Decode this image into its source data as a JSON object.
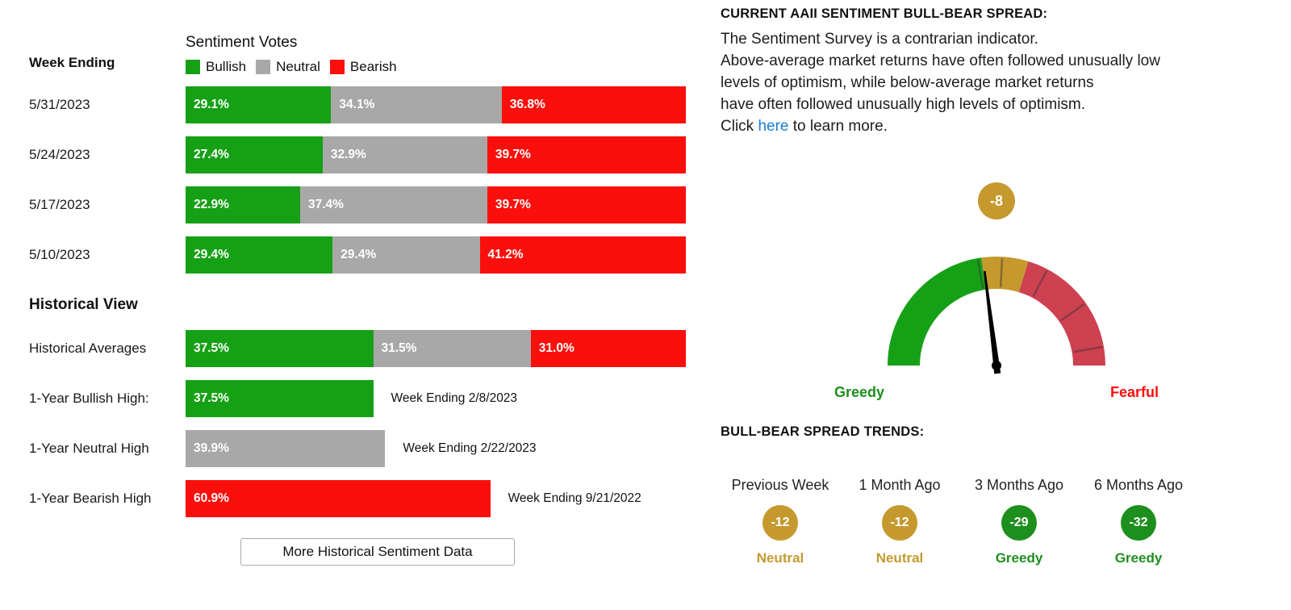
{
  "colors": {
    "bullish": "#16a016",
    "neutral": "#a8a8a8",
    "bearish": "#fb0f0c",
    "gold": "#c5992e",
    "gauge_red": "#ce4150",
    "trend_green": "#1d8f1d",
    "link": "#1c7fd6"
  },
  "left": {
    "week_ending_label": "Week Ending",
    "chart_title": "Sentiment Votes",
    "legend": [
      {
        "label": "Bullish"
      },
      {
        "label": "Neutral"
      },
      {
        "label": "Bearish"
      }
    ],
    "weeks": [
      {
        "date": "5/31/2023",
        "bullish": 29.1,
        "neutral": 34.1,
        "bearish": 36.8,
        "bullish_label": "29.1%",
        "neutral_label": "34.1%",
        "bearish_label": "36.8%"
      },
      {
        "date": "5/24/2023",
        "bullish": 27.4,
        "neutral": 32.9,
        "bearish": 39.7,
        "bullish_label": "27.4%",
        "neutral_label": "32.9%",
        "bearish_label": "39.7%"
      },
      {
        "date": "5/17/2023",
        "bullish": 22.9,
        "neutral": 37.4,
        "bearish": 39.7,
        "bullish_label": "22.9%",
        "neutral_label": "37.4%",
        "bearish_label": "39.7%"
      },
      {
        "date": "5/10/2023",
        "bullish": 29.4,
        "neutral": 29.4,
        "bearish": 41.2,
        "bullish_label": "29.4%",
        "neutral_label": "29.4%",
        "bearish_label": "41.2%"
      }
    ],
    "historical_heading": "Historical View",
    "historical_averages": {
      "label": "Historical Averages",
      "bullish": 37.5,
      "neutral": 31.5,
      "bearish": 31.0,
      "bullish_label": "37.5%",
      "neutral_label": "31.5%",
      "bearish_label": "31.0%"
    },
    "historical_highs": [
      {
        "label": "1-Year Bullish High:",
        "series": "bullish",
        "value": 37.5,
        "value_label": "37.5%",
        "note": "Week Ending 2/8/2023"
      },
      {
        "label": "1-Year Neutral High",
        "series": "neutral",
        "value": 39.9,
        "value_label": "39.9%",
        "note": "Week Ending 2/22/2023"
      },
      {
        "label": "1-Year Bearish High",
        "series": "bearish",
        "value": 60.9,
        "value_label": "60.9%",
        "note": "Week Ending 9/21/2022"
      }
    ],
    "more_data_button": "More Historical Sentiment Data"
  },
  "right": {
    "heading": "CURRENT AAII SENTIMENT BULL-BEAR SPREAD:",
    "description_lines": [
      "The Sentiment Survey is a contrarian indicator.",
      "Above-average market returns have often followed unusually low",
      "levels of optimism, while below-average market returns",
      "have often followed unusually high levels of optimism."
    ],
    "click_prefix": "Click ",
    "link_text": "here",
    "click_suffix": " to learn more.",
    "gauge": {
      "value": -8,
      "badge_label": "-8",
      "range_min": -100,
      "range_max": 100,
      "left_label": "Greedy",
      "right_label": "Fearful"
    },
    "trends_heading": "BULL-BEAR SPREAD TRENDS:",
    "trends": [
      {
        "label": "Previous Week",
        "value_label": "-12",
        "status": "Neutral",
        "tone": "neutral"
      },
      {
        "label": "1 Month Ago",
        "value_label": "-12",
        "status": "Neutral",
        "tone": "neutral"
      },
      {
        "label": "3 Months Ago",
        "value_label": "-29",
        "status": "Greedy",
        "tone": "greedy"
      },
      {
        "label": "6 Months Ago",
        "value_label": "-32",
        "status": "Greedy",
        "tone": "greedy"
      }
    ]
  },
  "chart_data": [
    {
      "type": "bar",
      "variant": "horizontal-stacked",
      "title": "Sentiment Votes",
      "categories": [
        "5/31/2023",
        "5/24/2023",
        "5/17/2023",
        "5/10/2023"
      ],
      "series": [
        {
          "name": "Bullish",
          "color": "#16a016",
          "values": [
            29.1,
            27.4,
            22.9,
            29.4
          ]
        },
        {
          "name": "Neutral",
          "color": "#a8a8a8",
          "values": [
            34.1,
            32.9,
            37.4,
            29.4
          ]
        },
        {
          "name": "Bearish",
          "color": "#fb0f0c",
          "values": [
            36.8,
            39.7,
            39.7,
            41.2
          ]
        }
      ],
      "unit": "%",
      "xlim": [
        0,
        100
      ],
      "legend_position": "top",
      "grid": false
    },
    {
      "type": "bar",
      "variant": "horizontal-stacked",
      "title": "Historical View",
      "categories": [
        "Historical Averages"
      ],
      "series": [
        {
          "name": "Bullish",
          "values": [
            37.5
          ]
        },
        {
          "name": "Neutral",
          "values": [
            31.5
          ]
        },
        {
          "name": "Bearish",
          "values": [
            31.0
          ]
        }
      ],
      "single_bars": [
        {
          "label": "1-Year Bullish High:",
          "series": "Bullish",
          "value": 37.5,
          "note": "Week Ending 2/8/2023"
        },
        {
          "label": "1-Year Neutral High",
          "series": "Neutral",
          "value": 39.9,
          "note": "Week Ending 2/22/2023"
        },
        {
          "label": "1-Year Bearish High",
          "series": "Bearish",
          "value": 60.9,
          "note": "Week Ending 9/21/2022"
        }
      ],
      "unit": "%",
      "xlim": [
        0,
        100
      ]
    },
    {
      "type": "gauge",
      "title": "Current AAII Sentiment Bull-Bear Spread",
      "value": -8,
      "range": [
        -100,
        100
      ],
      "zones": [
        {
          "label": "Greedy",
          "color": "#16a016"
        },
        {
          "label": "Neutral",
          "color": "#c5992e"
        },
        {
          "label": "Fearful",
          "color": "#ce4150"
        }
      ],
      "left_label": "Greedy",
      "right_label": "Fearful"
    },
    {
      "type": "table",
      "title": "Bull-Bear Spread Trends",
      "columns": [
        "Previous Week",
        "1 Month Ago",
        "3 Months Ago",
        "6 Months Ago"
      ],
      "rows": [
        [
          -12,
          -12,
          -29,
          -32
        ],
        [
          "Neutral",
          "Neutral",
          "Greedy",
          "Greedy"
        ]
      ]
    }
  ]
}
